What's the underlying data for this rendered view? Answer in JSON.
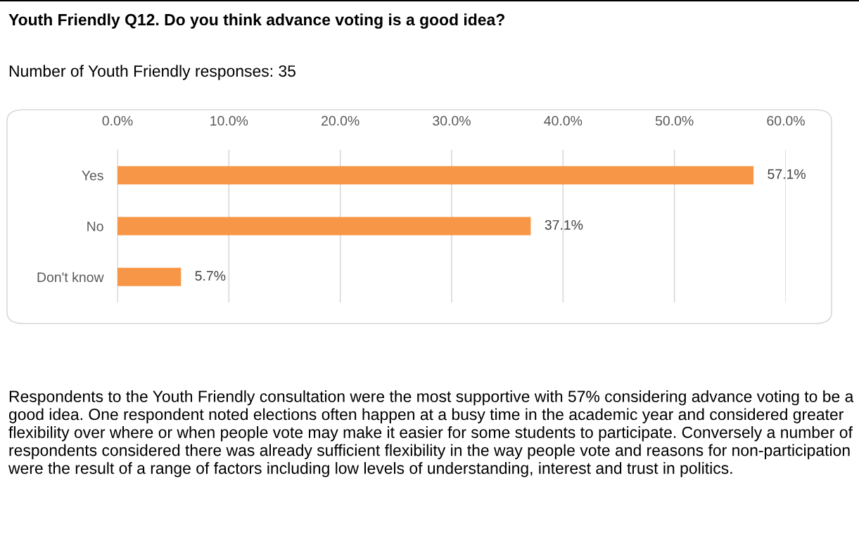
{
  "chart_data": {
    "type": "bar",
    "orientation": "horizontal",
    "title": "Youth Friendly Q12. Do you think advance voting is a good idea?",
    "subtitle": "Number of Youth Friendly responses: 35",
    "categories": [
      "Yes",
      "No",
      "Don't know"
    ],
    "values": [
      57.1,
      37.1,
      5.7
    ],
    "value_labels": [
      "57.1%",
      "37.1%",
      "5.7%"
    ],
    "color": "#f79646",
    "xlim": [
      0,
      60
    ],
    "xticks": [
      {
        "value": 0,
        "label": "0.0%"
      },
      {
        "value": 10,
        "label": "10.0%"
      },
      {
        "value": 20,
        "label": "20.0%"
      },
      {
        "value": 30,
        "label": "30.0%"
      },
      {
        "value": 40,
        "label": "40.0%"
      },
      {
        "value": 50,
        "label": "50.0%"
      },
      {
        "value": 60,
        "label": "60.0%"
      }
    ],
    "grid": "x",
    "annotations": [
      "Respondents to the Youth Friendly consultation were the most supportive with 57% considering advance voting to be a good idea. One respondent noted elections often happen at a busy time in the academic year and considered greater flexibility over where or when people vote may make it easier for some students to participate. Conversely a number of respondents considered there was already sufficient flexibility in the way people vote and reasons for non-participation were the result of a range of factors including low levels of understanding, interest and trust in politics."
    ]
  }
}
